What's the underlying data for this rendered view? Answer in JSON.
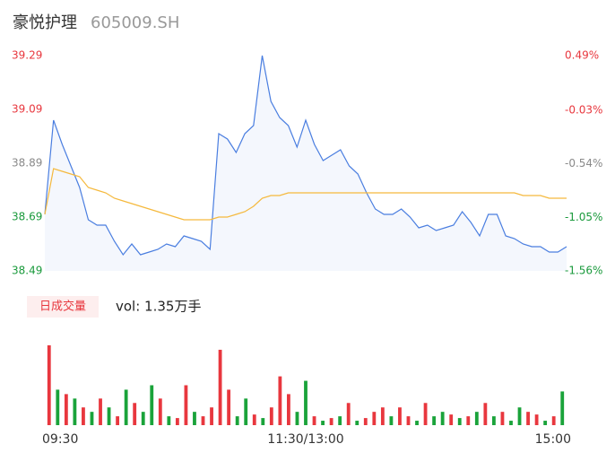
{
  "header": {
    "name": "豪悦护理",
    "code": "605009.SH"
  },
  "chart_data": {
    "type": "line",
    "x": [
      0,
      4,
      8,
      12,
      16,
      20,
      24,
      28,
      32,
      36,
      40,
      44,
      48,
      52,
      56,
      60,
      64,
      68,
      72,
      76,
      80,
      84,
      88,
      92,
      96,
      100,
      104,
      108,
      112,
      116,
      120,
      124,
      128,
      132,
      136,
      140,
      144,
      148,
      152,
      156,
      160,
      164,
      168,
      172,
      176,
      180,
      184,
      188,
      192,
      196,
      200,
      204,
      208,
      212,
      216,
      220,
      224,
      228,
      232,
      236,
      240
    ],
    "xlim": [
      0,
      240
    ],
    "xticks": [
      {
        "value": 0,
        "label": "09:30"
      },
      {
        "value": 120,
        "label": "11:30/13:00"
      },
      {
        "value": 240,
        "label": "15:00"
      }
    ],
    "series": [
      {
        "color": "#4a7ee0",
        "values": [
          38.7,
          39.05,
          38.96,
          38.88,
          38.8,
          38.68,
          38.66,
          38.66,
          38.6,
          38.55,
          38.59,
          38.55,
          38.56,
          38.57,
          38.59,
          38.58,
          38.62,
          38.61,
          38.6,
          38.57,
          39.0,
          38.98,
          38.93,
          39.0,
          39.03,
          39.29,
          39.12,
          39.06,
          39.03,
          38.95,
          39.05,
          38.96,
          38.9,
          38.92,
          38.94,
          38.88,
          38.85,
          38.78,
          38.72,
          38.7,
          38.7,
          38.72,
          38.69,
          38.65,
          38.66,
          38.64,
          38.65,
          38.66,
          38.71,
          38.67,
          38.62,
          38.7,
          38.7,
          38.62,
          38.61,
          38.59,
          38.58,
          38.58,
          38.56,
          38.56,
          38.58
        ]
      },
      {
        "color": "#f5b93d",
        "values": [
          38.7,
          38.87,
          38.86,
          38.85,
          38.84,
          38.8,
          38.79,
          38.78,
          38.76,
          38.75,
          38.74,
          38.73,
          38.72,
          38.71,
          38.7,
          38.69,
          38.68,
          38.68,
          38.68,
          38.68,
          38.69,
          38.69,
          38.7,
          38.71,
          38.73,
          38.76,
          38.77,
          38.77,
          38.78,
          38.78,
          38.78,
          38.78,
          38.78,
          38.78,
          38.78,
          38.78,
          38.78,
          38.78,
          38.78,
          38.78,
          38.78,
          38.78,
          38.78,
          38.78,
          38.78,
          38.78,
          38.78,
          38.78,
          38.78,
          38.78,
          38.78,
          38.78,
          38.78,
          38.78,
          38.78,
          38.77,
          38.77,
          38.77,
          38.76,
          38.76,
          38.76
        ]
      }
    ],
    "ylim": [
      38.49,
      39.29
    ],
    "yticks": [
      39.29,
      39.09,
      38.89,
      38.69,
      38.49
    ],
    "y2lim": [
      -1.56,
      0.49
    ],
    "y2ticks": [
      {
        "value": 0.49,
        "label": "0.49%"
      },
      {
        "value": -0.03,
        "label": "-0.03%"
      },
      {
        "value": -0.54,
        "label": "-0.54%"
      },
      {
        "value": -1.05,
        "label": "-1.05%"
      },
      {
        "value": -1.56,
        "label": "-1.56%"
      }
    ],
    "tick_colors": [
      "#e8373e",
      "#e8373e",
      "#8a8a8a",
      "#1a9a3c",
      "#1a9a3c"
    ],
    "volume_tab": "日成交量",
    "volume_label": "vol: 1.35万手",
    "volume_lim": [
      0,
      90
    ],
    "volume": [
      90,
      40,
      35,
      30,
      20,
      15,
      30,
      20,
      10,
      40,
      25,
      15,
      45,
      30,
      10,
      8,
      45,
      15,
      10,
      20,
      85,
      40,
      10,
      30,
      12,
      8,
      20,
      55,
      35,
      15,
      50,
      10,
      5,
      8,
      10,
      25,
      5,
      8,
      15,
      20,
      10,
      20,
      10,
      5,
      25,
      10,
      15,
      12,
      8,
      10,
      15,
      25,
      10,
      15,
      5,
      20,
      15,
      12,
      5,
      10,
      38
    ],
    "volume_colors": [
      "#e8373e",
      "#1aa33a",
      "#e8373e",
      "#1aa33a",
      "#e8373e",
      "#1aa33a",
      "#e8373e",
      "#1aa33a",
      "#e8373e",
      "#1aa33a",
      "#e8373e",
      "#1aa33a",
      "#1aa33a",
      "#e8373e",
      "#1aa33a",
      "#e8373e",
      "#e8373e",
      "#1aa33a",
      "#e8373e",
      "#e8373e",
      "#e8373e",
      "#e8373e",
      "#1aa33a",
      "#1aa33a",
      "#e8373e",
      "#1aa33a",
      "#e8373e",
      "#e8373e",
      "#e8373e",
      "#1aa33a",
      "#1aa33a",
      "#e8373e",
      "#1aa33a",
      "#e8373e",
      "#1aa33a",
      "#e8373e",
      "#1aa33a",
      "#e8373e",
      "#e8373e",
      "#e8373e",
      "#1aa33a",
      "#e8373e",
      "#e8373e",
      "#1aa33a",
      "#e8373e",
      "#1aa33a",
      "#1aa33a",
      "#e8373e",
      "#1aa33a",
      "#e8373e",
      "#1aa33a",
      "#e8373e",
      "#1aa33a",
      "#e8373e",
      "#1aa33a",
      "#1aa33a",
      "#e8373e",
      "#e8373e",
      "#1aa33a",
      "#e8373e",
      "#1aa33a"
    ]
  }
}
